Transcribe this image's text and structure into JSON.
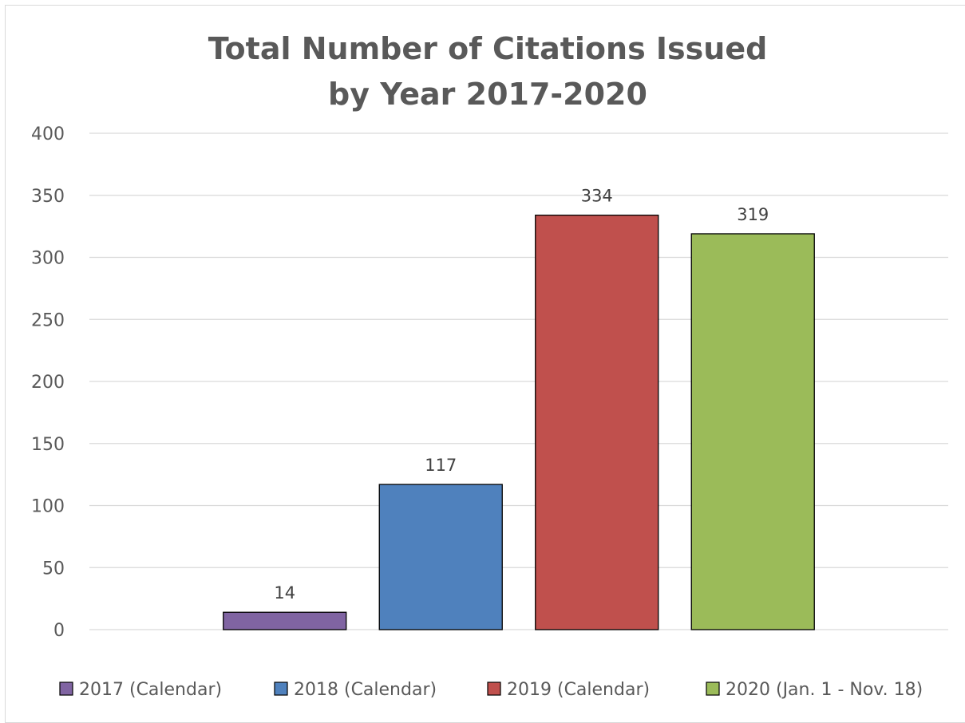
{
  "chart_data": {
    "type": "bar",
    "title_lines": [
      "Total Number of Citations Issued",
      "by Year 2017-2020"
    ],
    "categories": [
      "2017 (Calendar)",
      "2018 (Calendar)",
      "2019 (Calendar)",
      "2020 (Jan. 1 - Nov. 18)"
    ],
    "values": [
      14,
      117,
      334,
      319
    ],
    "colors": [
      "#8064a2",
      "#4f81bd",
      "#c0504d",
      "#9bbb59"
    ],
    "ylim": [
      0,
      400
    ],
    "yticks": [
      0,
      50,
      100,
      150,
      200,
      250,
      300,
      350,
      400
    ],
    "grid": true,
    "legend": "bottom",
    "xlabel": "",
    "ylabel": ""
  }
}
